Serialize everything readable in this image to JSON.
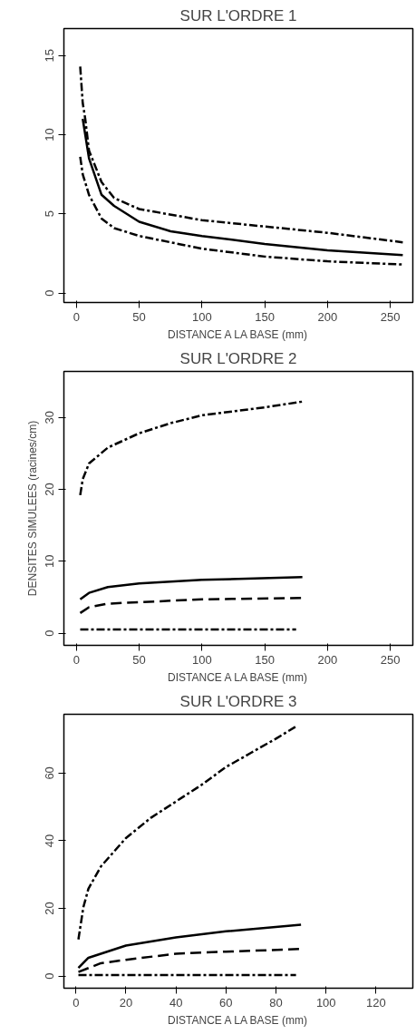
{
  "chart_data": [
    {
      "type": "line",
      "title": "SUR L'ORDRE 1",
      "xlabel": "DISTANCE A LA BASE (mm)",
      "xlim": [
        -10,
        268
      ],
      "ylim": [
        -0.6,
        16.7
      ],
      "xticks": [
        0,
        50,
        100,
        150,
        200,
        250
      ],
      "yticks": [
        0,
        5,
        10,
        15
      ],
      "grid": false,
      "series": [
        {
          "color": "#000000",
          "line_style": "dashdot",
          "x": [
            3,
            5,
            7,
            10,
            20,
            30,
            50,
            100,
            150,
            200,
            260
          ],
          "values": [
            14.3,
            12,
            11,
            9.0,
            7.0,
            6.0,
            5.3,
            4.6,
            4.2,
            3.8,
            3.2
          ]
        },
        {
          "color": "#000000",
          "line_style": "solid",
          "x": [
            5,
            10,
            20,
            30,
            50,
            75,
            100,
            150,
            200,
            260
          ],
          "values": [
            11.0,
            8.5,
            6.2,
            5.5,
            4.5,
            3.9,
            3.6,
            3.1,
            2.7,
            2.4
          ]
        },
        {
          "color": "#000000",
          "line_style": "dashdot",
          "x": [
            3,
            5,
            10,
            20,
            30,
            50,
            100,
            150,
            200,
            260
          ],
          "values": [
            8.6,
            7.5,
            6.2,
            4.7,
            4.1,
            3.6,
            2.8,
            2.3,
            2.0,
            1.8
          ]
        }
      ]
    },
    {
      "type": "line",
      "title": "SUR L'ORDRE 2",
      "xlabel": "DISTANCE A LA BASE (mm)",
      "ylabel": "DENSITES SIMULEES (racines/cm)",
      "xlim": [
        -10,
        268
      ],
      "ylim": [
        -1.7,
        36.4
      ],
      "xticks": [
        0,
        50,
        100,
        150,
        200,
        250
      ],
      "yticks": [
        0,
        10,
        20,
        30
      ],
      "grid": false,
      "series": [
        {
          "color": "#000000",
          "line_style": "dashdot",
          "x": [
            3,
            5,
            10,
            25,
            50,
            75,
            100,
            150,
            180
          ],
          "values": [
            19.2,
            21.4,
            23.6,
            25.8,
            27.8,
            29.2,
            30.3,
            31.4,
            32.2
          ]
        },
        {
          "color": "#000000",
          "line_style": "solid",
          "x": [
            3,
            10,
            25,
            50,
            100,
            180
          ],
          "values": [
            4.7,
            5.6,
            6.4,
            6.9,
            7.4,
            7.8
          ]
        },
        {
          "color": "#000000",
          "line_style": "dashed",
          "x": [
            3,
            10,
            25,
            50,
            100,
            180
          ],
          "values": [
            2.8,
            3.6,
            4.1,
            4.3,
            4.7,
            4.9
          ]
        },
        {
          "color": "#000000",
          "line_style": "dashdot",
          "x": [
            3,
            90,
            175
          ],
          "values": [
            0.5,
            0.5,
            0.5
          ]
        }
      ]
    },
    {
      "type": "line",
      "title": "SUR L'ORDRE 3",
      "xlabel": "DISTANCE A LA BASE (mm)",
      "xlim": [
        -4.8,
        134.7
      ],
      "ylim": [
        -3.6,
        77.4
      ],
      "xticks": [
        0,
        20,
        40,
        60,
        80,
        100,
        120
      ],
      "yticks": [
        0,
        20,
        40,
        60
      ],
      "grid": false,
      "series": [
        {
          "color": "#000000",
          "line_style": "dashdot",
          "x": [
            1,
            3,
            5,
            10,
            20,
            30,
            40,
            50,
            60,
            70,
            80,
            88
          ],
          "values": [
            10.8,
            20.4,
            25.8,
            32.4,
            40.8,
            46.8,
            51.6,
            56.4,
            61.8,
            66,
            70.2,
            73.8
          ]
        },
        {
          "color": "#000000",
          "line_style": "solid",
          "x": [
            1,
            5,
            10,
            20,
            40,
            60,
            90
          ],
          "values": [
            2.4,
            5.4,
            6.6,
            9,
            11.4,
            13.2,
            15.2
          ]
        },
        {
          "color": "#000000",
          "line_style": "dashed",
          "x": [
            1,
            10,
            20,
            40,
            60,
            90
          ],
          "values": [
            1.2,
            3.8,
            4.8,
            6.6,
            7.2,
            8.0
          ]
        },
        {
          "color": "#000000",
          "line_style": "dashdot",
          "x": [
            1,
            45,
            88
          ],
          "values": [
            0.3,
            0.3,
            0.3
          ]
        }
      ]
    }
  ]
}
